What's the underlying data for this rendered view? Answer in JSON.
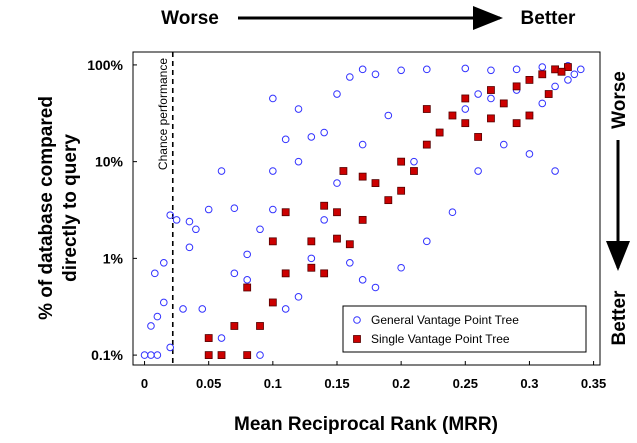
{
  "chart_data": {
    "type": "scatter",
    "xlabel": "Mean Reciprocal Rank (MRR)",
    "ylabel_lines": [
      "% of database compared",
      "directly to query"
    ],
    "annotations": {
      "top_worse": "Worse",
      "top_better": "Better",
      "right_worse": "Worse",
      "right_better": "Better",
      "chance": "Chance performance"
    },
    "chance_x": 0.022,
    "xlim": [
      -0.009,
      0.355
    ],
    "ylim": [
      0.079,
      136
    ],
    "yscale": "log",
    "xticks": [
      0,
      0.05,
      0.1,
      0.15,
      0.2,
      0.25,
      0.3,
      0.35
    ],
    "yticks": [
      {
        "value": 0.1,
        "label": "0.1%"
      },
      {
        "value": 1,
        "label": "1%"
      },
      {
        "value": 10,
        "label": "10%"
      },
      {
        "value": 100,
        "label": "100%"
      }
    ],
    "legend": "lower right",
    "series": [
      {
        "name": "General Vantage Point Tree",
        "color": "#3333ff",
        "marker": "circle",
        "x": [
          0,
          0.005,
          0.01,
          0.02,
          0.005,
          0.01,
          0.015,
          0.008,
          0.015,
          0.02,
          0.025,
          0.035,
          0.03,
          0.045,
          0.05,
          0.06,
          0.07,
          0.05,
          0.06,
          0.07,
          0.08,
          0.09,
          0.1,
          0.1,
          0.11,
          0.12,
          0.13,
          0.14,
          0.12,
          0.1,
          0.15,
          0.16,
          0.17,
          0.18,
          0.2,
          0.22,
          0.25,
          0.27,
          0.29,
          0.31,
          0.33,
          0.34,
          0.32,
          0.3,
          0.28,
          0.26,
          0.24,
          0.22,
          0.2,
          0.18,
          0.17,
          0.16,
          0.14,
          0.13,
          0.12,
          0.11,
          0.09,
          0.23,
          0.25,
          0.27,
          0.29,
          0.31,
          0.33,
          0.335,
          0.3,
          0.32,
          0.26,
          0.21,
          0.19,
          0.17,
          0.15,
          0.08,
          0.035,
          0.04
        ],
        "values": [
          0.1,
          0.1,
          0.1,
          0.12,
          0.2,
          0.25,
          0.35,
          0.7,
          0.9,
          2.8,
          2.5,
          2.4,
          0.3,
          0.3,
          0.15,
          0.15,
          0.7,
          3.2,
          8,
          3.3,
          1.1,
          2,
          3.2,
          8,
          17,
          10,
          18,
          20,
          35,
          45,
          50,
          75,
          90,
          80,
          88,
          90,
          92,
          88,
          90,
          95,
          98,
          90,
          60,
          30,
          15,
          8,
          3,
          1.5,
          0.8,
          0.5,
          0.6,
          0.9,
          2.5,
          1,
          0.4,
          0.3,
          0.1,
          20,
          35,
          45,
          55,
          40,
          70,
          80,
          12,
          8,
          50,
          10,
          30,
          15,
          6,
          0.6,
          1.3,
          2
        ]
      },
      {
        "name": "Single Vantage Point Tree",
        "color": "#cc0000",
        "marker": "square",
        "x": [
          0.05,
          0.06,
          0.08,
          0.05,
          0.07,
          0.09,
          0.08,
          0.1,
          0.11,
          0.1,
          0.11,
          0.13,
          0.14,
          0.13,
          0.15,
          0.14,
          0.16,
          0.15,
          0.17,
          0.18,
          0.19,
          0.2,
          0.21,
          0.22,
          0.23,
          0.24,
          0.25,
          0.26,
          0.27,
          0.28,
          0.29,
          0.3,
          0.31,
          0.32,
          0.33,
          0.325,
          0.315,
          0.3,
          0.29,
          0.27,
          0.25,
          0.22,
          0.2,
          0.17,
          0.155
        ],
        "values": [
          0.1,
          0.1,
          0.1,
          0.15,
          0.2,
          0.2,
          0.5,
          0.35,
          0.7,
          1.5,
          3,
          0.8,
          0.7,
          1.5,
          1.6,
          3.5,
          1.4,
          3,
          2.5,
          6,
          4,
          10,
          8,
          15,
          20,
          30,
          25,
          18,
          28,
          40,
          60,
          70,
          80,
          90,
          95,
          85,
          50,
          30,
          25,
          55,
          45,
          35,
          5,
          7,
          8
        ]
      }
    ]
  }
}
